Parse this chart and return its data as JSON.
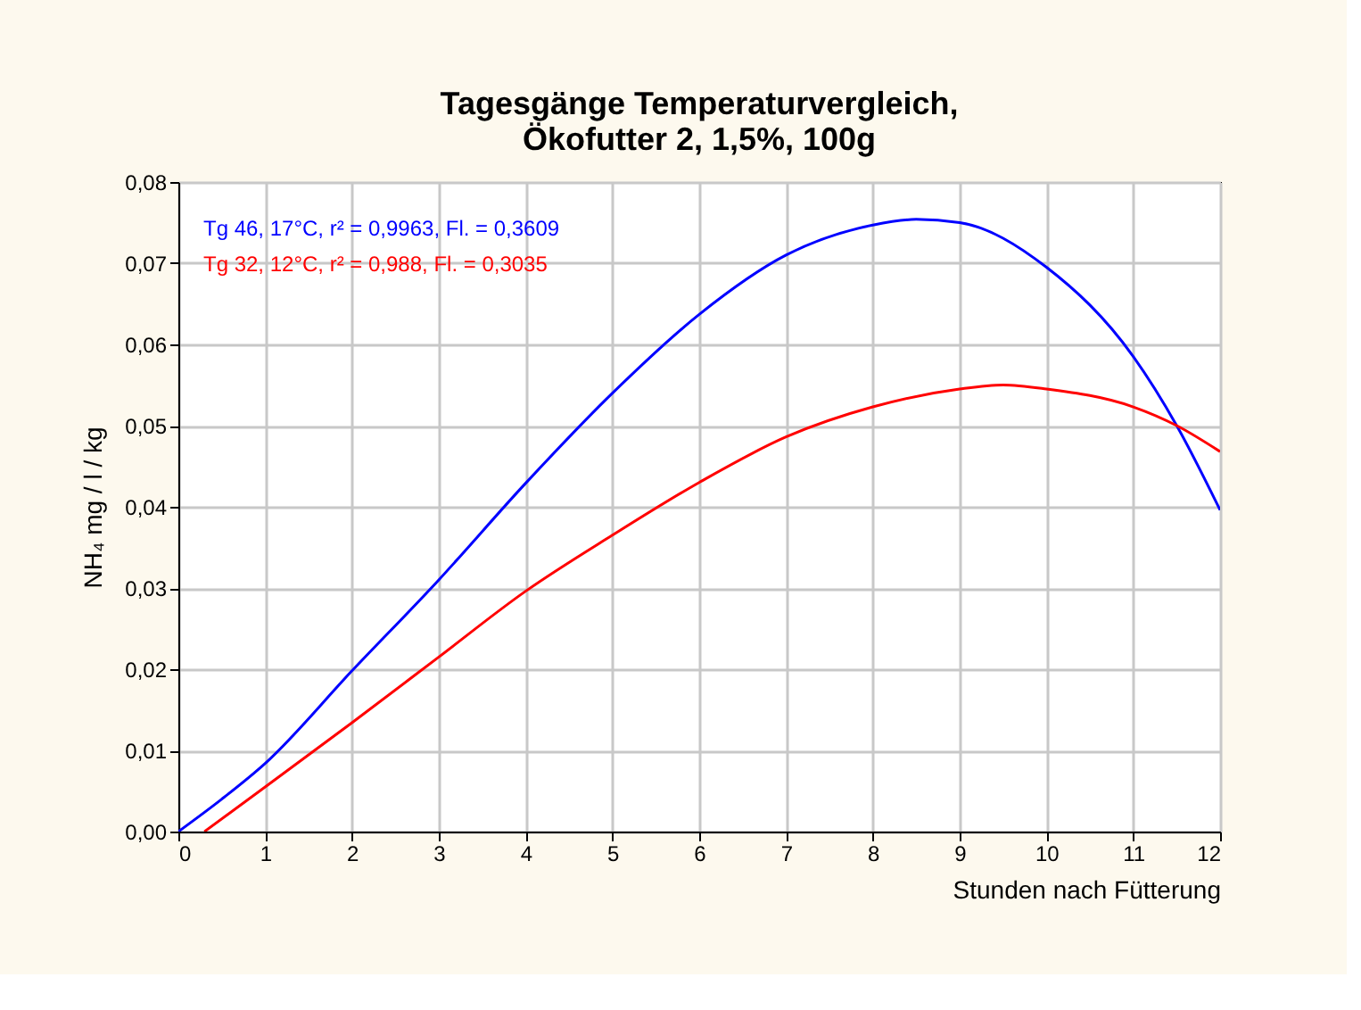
{
  "chart_data": {
    "type": "line",
    "title": [
      "Tagesgänge Temperaturvergleich,",
      "Ökofutter 2, 1,5%, 100g"
    ],
    "xlabel": "Stunden nach Fütterung",
    "ylabel": "NH₄ mg / l / kg",
    "xlim": [
      0,
      12
    ],
    "xticks": [
      0,
      1,
      2,
      3,
      4,
      5,
      6,
      7,
      8,
      9,
      10,
      11,
      12
    ],
    "ylim": [
      0,
      0.08
    ],
    "yticks": [
      {
        "value": 0,
        "label": "0,00"
      },
      {
        "value": 0.01,
        "label": "0,01"
      },
      {
        "value": 0.02,
        "label": "0,02"
      },
      {
        "value": 0.03,
        "label": "0,03"
      },
      {
        "value": 0.04,
        "label": "0,04"
      },
      {
        "value": 0.05,
        "label": "0,05"
      },
      {
        "value": 0.06,
        "label": "0,06"
      },
      {
        "value": 0.07,
        "label": "0,07"
      },
      {
        "value": 0.08,
        "label": "0,08"
      }
    ],
    "grid": true,
    "legend": "top left",
    "marker": "none",
    "line_style": "solid",
    "series": [
      {
        "name": "Tg 46, 17°C, r² = 0,9963, Fl. = 0,3609",
        "color": "#0000ff",
        "x": [
          0,
          0.5,
          1,
          2,
          3,
          4,
          5,
          6,
          7,
          8,
          8.5,
          9,
          10,
          11,
          11.5,
          12
        ],
        "values": [
          0,
          0.004,
          0.0084,
          0.0198,
          0.031,
          0.0429,
          0.054,
          0.0637,
          0.071,
          0.0747,
          0.0754,
          0.075,
          0.0695,
          0.0585,
          0.05,
          0.0396
        ]
      },
      {
        "name": "Tg 32, 12°C, r² = 0,988, Fl. = 0,3035",
        "color": "#ff0000",
        "x": [
          0.3,
          1,
          2,
          3,
          4,
          5,
          6,
          7,
          8,
          9,
          9.5,
          10,
          11,
          11.5,
          12
        ],
        "values": [
          0,
          0.0055,
          0.0134,
          0.0215,
          0.0296,
          0.0365,
          0.043,
          0.0486,
          0.0523,
          0.0545,
          0.055,
          0.0545,
          0.0523,
          0.05,
          0.0468
        ]
      }
    ]
  }
}
